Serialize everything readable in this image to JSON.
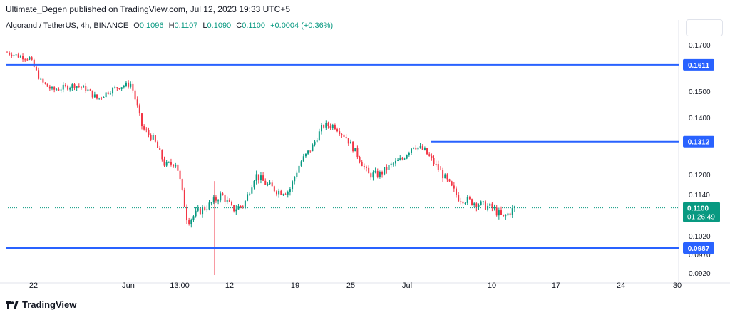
{
  "header": {
    "published_line": "Ultimate_Degen published on TradingView.com, Jul 12, 2023 19:33 UTC+5"
  },
  "symbol": {
    "name": "Algorand / TetherUS, 4h, BINANCE",
    "open_label": "O",
    "open": "0.1096",
    "high_label": "H",
    "high": "0.1107",
    "low_label": "L",
    "low": "0.1090",
    "close_label": "C",
    "close": "0.1100",
    "change": "+0.0004 (+0.36%)"
  },
  "footer": {
    "logo_icon": "tradingview-logo-icon",
    "brand": "TradingView"
  },
  "colors": {
    "up": "#089981",
    "down": "#f23645",
    "level_line": "#2962ff",
    "grid": "#f0f3fa",
    "axis_text": "#131722"
  },
  "chart_data": {
    "type": "candlestick",
    "y_axis": {
      "ticks": [
        "0.1700",
        "0.1500",
        "0.1400",
        "0.1200",
        "0.1140",
        "0.1020",
        "0.0970",
        "0.0920"
      ],
      "scale": "log"
    },
    "x_axis": {
      "ticks": [
        "22",
        "Jun",
        "13:00",
        "12",
        "19",
        "25",
        "Jul",
        "10",
        "17",
        "24",
        "30"
      ]
    },
    "horizontal_levels": [
      {
        "label": "0.1611",
        "value": 0.1611,
        "from": "start"
      },
      {
        "label": "0.1312",
        "value": 0.1312,
        "from": "Jul"
      },
      {
        "label": "0.0987",
        "value": 0.0987,
        "from": "start"
      }
    ],
    "last_price": {
      "label": "0.1100",
      "value": 0.11,
      "countdown": "01:26:49"
    },
    "price_path": [
      [
        "May 20",
        0.1665
      ],
      [
        "May 22",
        0.165
      ],
      [
        "May 23",
        0.164
      ],
      [
        "May 24",
        0.154
      ],
      [
        "May 26",
        0.1505
      ],
      [
        "May 28",
        0.1515
      ],
      [
        "May 30",
        0.1525
      ],
      [
        "Jun 1",
        0.151
      ],
      [
        "Jun 2",
        0.147
      ],
      [
        "Jun 3",
        0.15
      ],
      [
        "Jun 5",
        0.152
      ],
      [
        "Jun 6",
        0.153
      ],
      [
        "Jun 6b",
        0.136
      ],
      [
        "Jun 8",
        0.132
      ],
      [
        "Jun 9",
        0.123
      ],
      [
        "Jun 10",
        0.124
      ],
      [
        "Jun 10b",
        0.106
      ],
      [
        "Jun 11",
        0.109
      ],
      [
        "Jun 13",
        0.111
      ],
      [
        "Jun 15",
        0.114
      ],
      [
        "Jun 16",
        0.1095
      ],
      [
        "Jun 17",
        0.111
      ],
      [
        "Jun 18",
        0.12
      ],
      [
        "Jun 20",
        0.117
      ],
      [
        "Jun 21",
        0.115
      ],
      [
        "Jun 22",
        0.115
      ],
      [
        "Jun 23",
        0.124
      ],
      [
        "Jun 24",
        0.129
      ],
      [
        "Jun 25",
        0.137
      ],
      [
        "Jun 26",
        0.137
      ],
      [
        "Jun 27",
        0.133
      ],
      [
        "Jun 28",
        0.127
      ],
      [
        "Jun 29",
        0.12
      ],
      [
        "Jun 30",
        0.12
      ],
      [
        "Jul 1",
        0.123
      ],
      [
        "Jul 2",
        0.125
      ],
      [
        "Jul 3",
        0.13
      ],
      [
        "Jul 4",
        0.128
      ],
      [
        "Jul 5",
        0.123
      ],
      [
        "Jul 6",
        0.118
      ],
      [
        "Jul 7",
        0.113
      ],
      [
        "Jul 8",
        0.112
      ],
      [
        "Jul 9",
        0.111
      ],
      [
        "Jul 10",
        0.11
      ],
      [
        "Jul 11",
        0.107
      ],
      [
        "Jul 12",
        0.11
      ]
    ]
  }
}
